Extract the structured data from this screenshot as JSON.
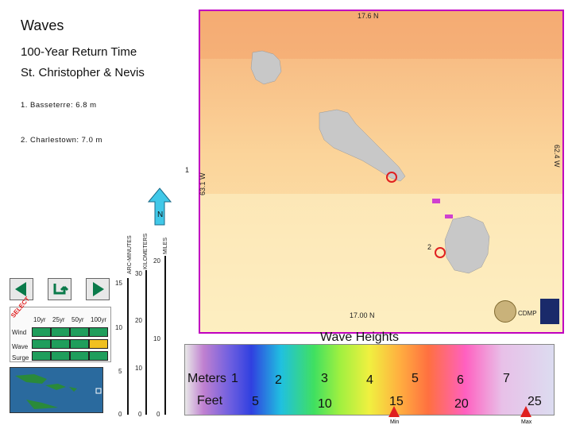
{
  "header": {
    "title": "Waves",
    "subtitle": "100-Year Return Time",
    "region": "St. Christopher & Nevis"
  },
  "locations": [
    {
      "label": "1. Basseterre:  6.8 m"
    },
    {
      "label": "2. Charlestown:  7.0 m"
    }
  ],
  "map": {
    "coord_top": "17.6 N",
    "coord_bottom": "17.00 N",
    "coord_right": "62.4 W",
    "coord_left": "63.1 W",
    "markers": [
      "1",
      "2"
    ],
    "logo_text": "CDMP"
  },
  "compass": {
    "label": "N"
  },
  "scale": {
    "arc_minutes_label": "ARC-MINUTES",
    "kilometers_label": "KILOMETERS",
    "miles_label": "MILES",
    "arc_ticks": [
      "15",
      "10",
      "5",
      "0"
    ],
    "km_ticks": [
      "30",
      "20",
      "10",
      "0"
    ],
    "mi_ticks": [
      "20",
      "10",
      "0"
    ]
  },
  "controls": {
    "select_label": "SELECT",
    "periods": [
      "10yr",
      "25yr",
      "50yr",
      "100yr"
    ],
    "rows": [
      "Wind",
      "Wave",
      "Surge"
    ],
    "selected": {
      "row": 1,
      "col": 3
    },
    "colors": {
      "cell": "#1f9e5c",
      "selected": "#f0c020",
      "arrow": "#0a7a4a"
    }
  },
  "legend": {
    "title": "Wave Heights",
    "meters_label": "Meters",
    "feet_label": "Feet",
    "meters_ticks": [
      "1",
      "2",
      "3",
      "4",
      "5",
      "6",
      "7"
    ],
    "feet_ticks": [
      "5",
      "10",
      "15",
      "20",
      "25"
    ],
    "min_label": "Min",
    "max_label": "Max",
    "marker_color": "#e02020"
  }
}
